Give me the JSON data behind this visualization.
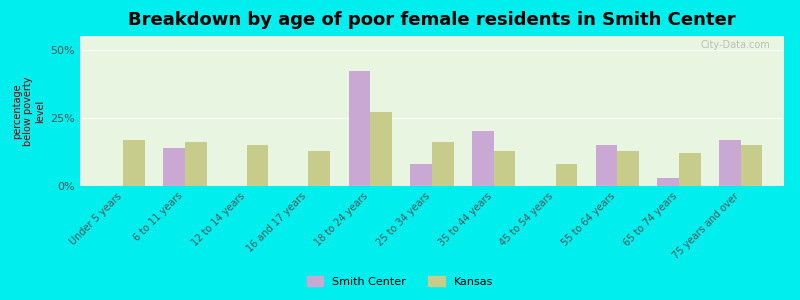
{
  "title": "Breakdown by age of poor female residents in Smith Center",
  "ylabel": "percentage\nbelow poverty\nlevel",
  "categories": [
    "Under 5 years",
    "6 to 11 years",
    "12 to 14 years",
    "16 and 17 years",
    "18 to 24 years",
    "25 to 34 years",
    "35 to 44 years",
    "45 to 54 years",
    "55 to 64 years",
    "65 to 74 years",
    "75 years and over"
  ],
  "smith_center": [
    0,
    14,
    0,
    0,
    42,
    8,
    20,
    0,
    15,
    3,
    17
  ],
  "kansas": [
    17,
    16,
    15,
    13,
    27,
    16,
    13,
    8,
    13,
    12,
    15
  ],
  "smith_center_color": "#c9a8d4",
  "kansas_color": "#c8cc8a",
  "background_color": "#e8f5e0",
  "outer_background": "#00eeee",
  "ylim": [
    0,
    55
  ],
  "yticks": [
    0,
    25,
    50
  ],
  "ytick_labels": [
    "0%",
    "25%",
    "50%"
  ],
  "bar_width": 0.35,
  "title_fontsize": 13,
  "legend_labels": [
    "Smith Center",
    "Kansas"
  ],
  "watermark": "City-Data.com"
}
